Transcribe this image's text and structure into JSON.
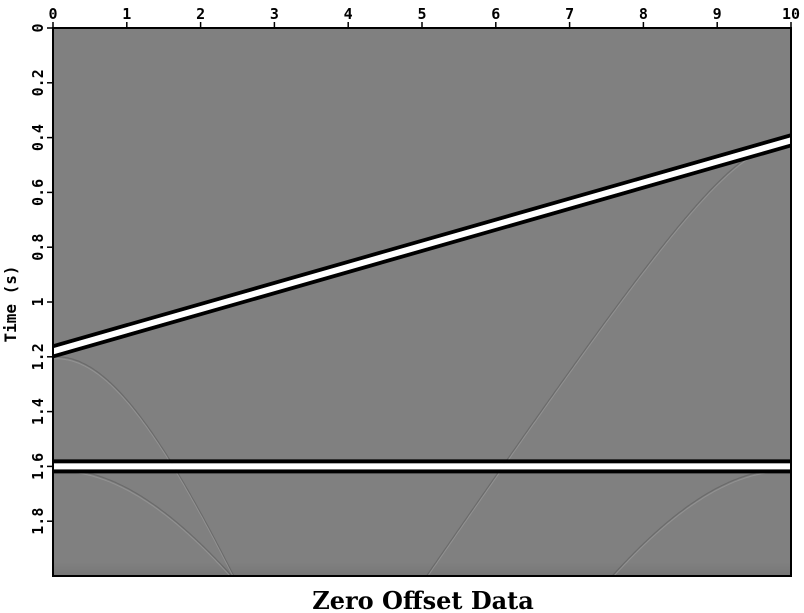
{
  "chart_data": {
    "type": "heatmap",
    "title": "Zero Offset Data",
    "xlabel": "",
    "ylabel": "Time (s)",
    "xlim": [
      0,
      10
    ],
    "ylim": [
      0,
      2
    ],
    "x_axis_position": "top",
    "y_axis_inverted": true,
    "grid": false,
    "colormap": "grayscale",
    "x_ticks": [
      "0",
      "1",
      "2",
      "3",
      "4",
      "5",
      "6",
      "7",
      "8",
      "9",
      "10"
    ],
    "y_ticks": [
      "0",
      "0.2",
      "0.4",
      "0.6",
      "0.8",
      "1",
      "1.2",
      "1.4",
      "1.6",
      "1.8"
    ],
    "events": [
      {
        "kind": "dipping reflector",
        "x": [
          0,
          10
        ],
        "t": [
          1.18,
          0.41
        ]
      },
      {
        "kind": "flat reflector",
        "x": [
          0,
          10
        ],
        "t": [
          1.6,
          1.6
        ]
      }
    ],
    "diffractions": [
      {
        "apex_x": 0.05,
        "apex_t": 1.2,
        "velocity": 3.0
      },
      {
        "apex_x": 0.05,
        "apex_t": 1.61,
        "velocity": 4.0
      },
      {
        "apex_x": 9.95,
        "apex_t": 1.61,
        "velocity": 4.0
      },
      {
        "apex_x": 9.95,
        "apex_t": 0.42,
        "velocity": 5.0
      }
    ]
  },
  "colors": {
    "background": "#808080",
    "positive": "#ffffff",
    "negative": "#000000"
  }
}
